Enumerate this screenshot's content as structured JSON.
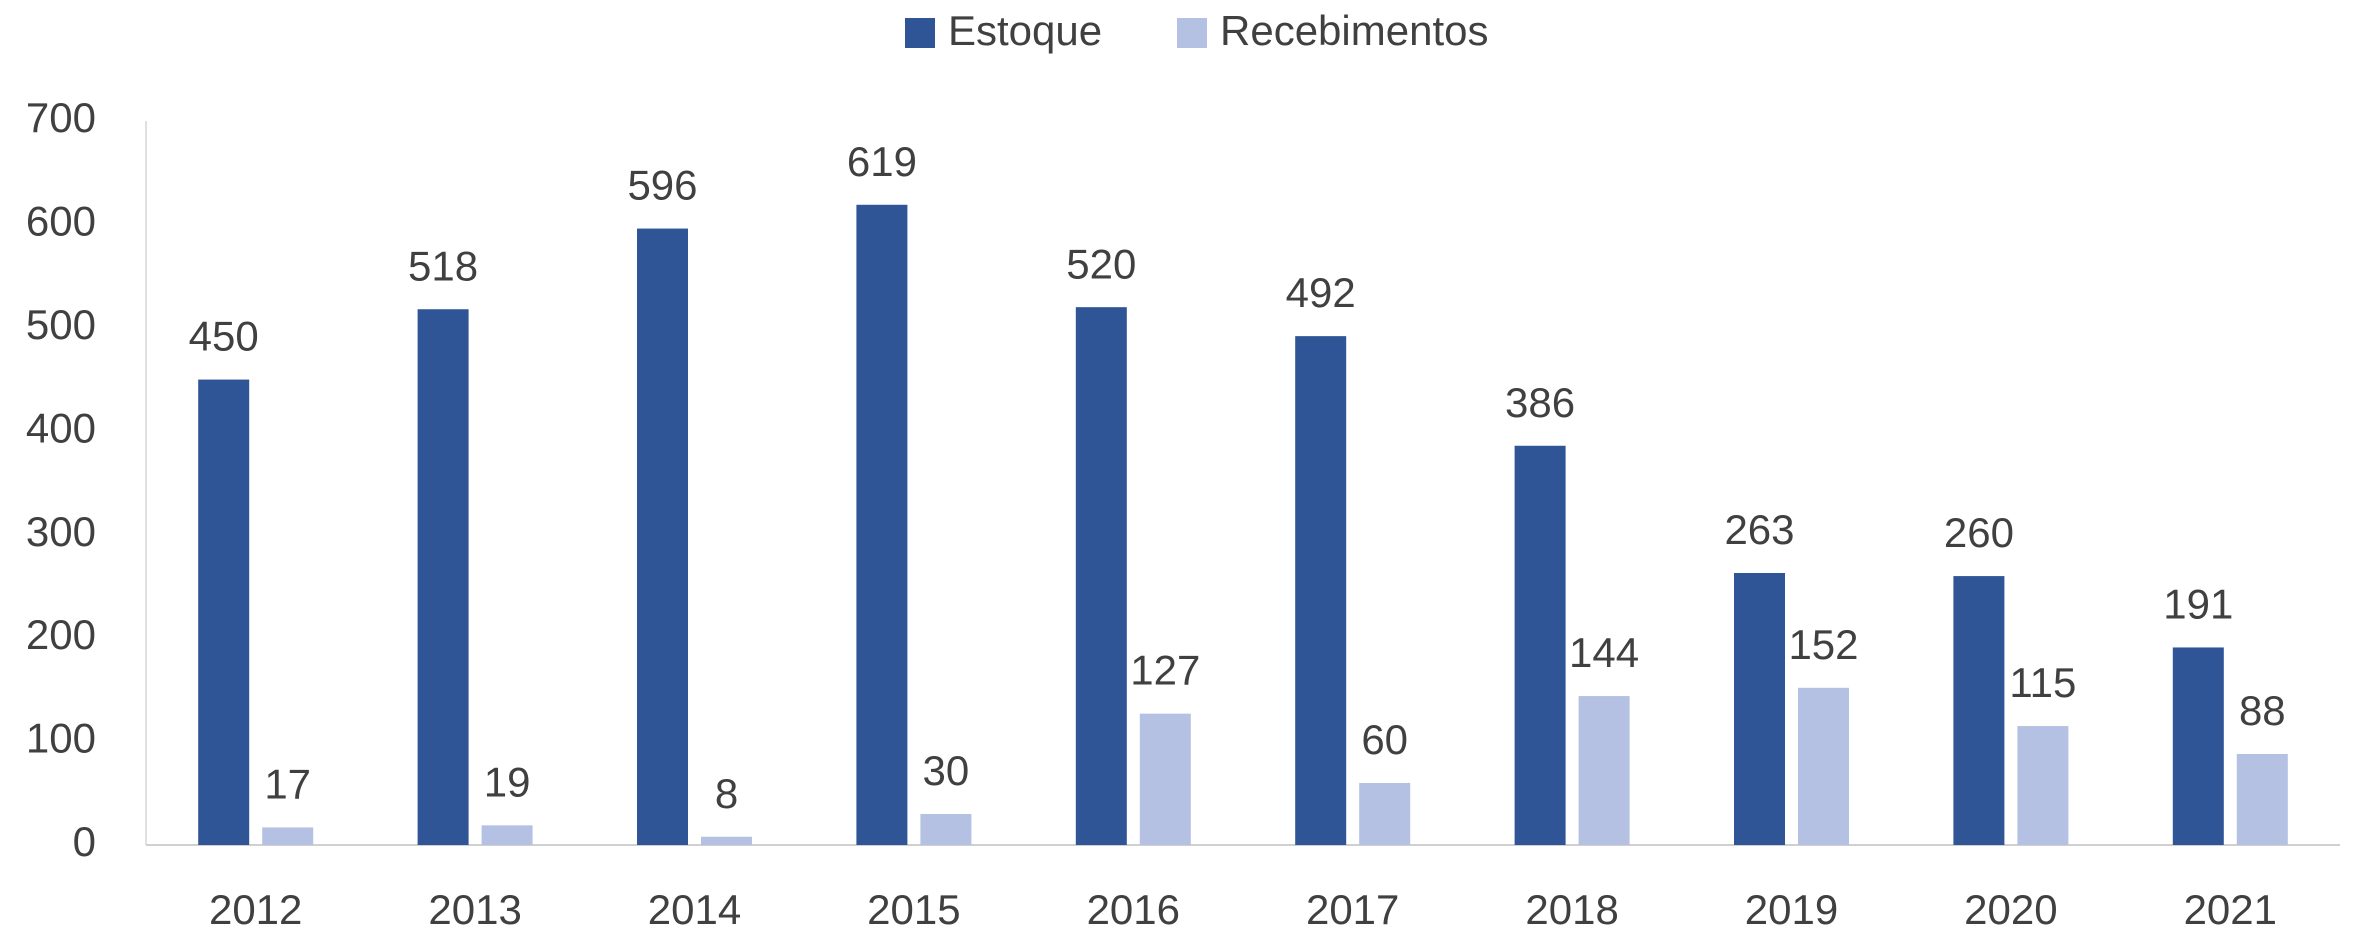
{
  "chart_data": {
    "type": "bar",
    "categories": [
      "2012",
      "2013",
      "2014",
      "2015",
      "2016",
      "2017",
      "2018",
      "2019",
      "2020",
      "2021"
    ],
    "series": [
      {
        "name": "Estoque",
        "color": "#2f5597",
        "values": [
          450,
          518,
          596,
          619,
          520,
          492,
          386,
          263,
          260,
          191
        ]
      },
      {
        "name": "Recebimentos",
        "color": "#b4c1e3",
        "values": [
          17,
          19,
          8,
          30,
          127,
          60,
          144,
          152,
          115,
          88
        ]
      }
    ],
    "ylim": [
      0,
      700
    ],
    "yticks": [
      0,
      100,
      200,
      300,
      400,
      500,
      600,
      700
    ],
    "grid": false,
    "legend": "top"
  }
}
